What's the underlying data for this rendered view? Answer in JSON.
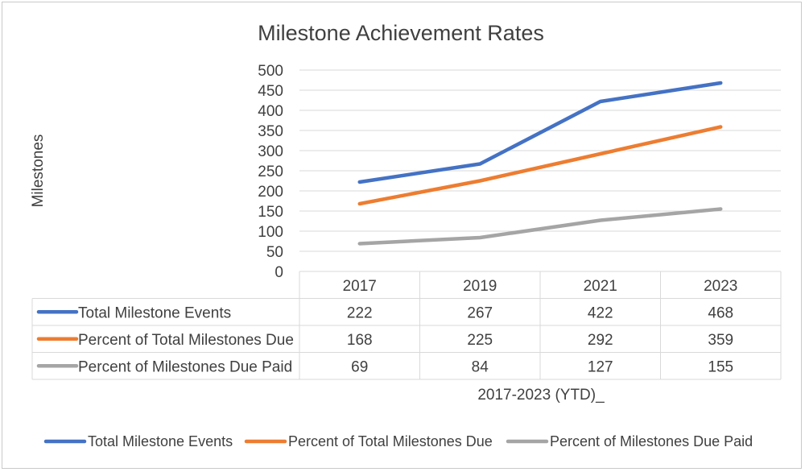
{
  "chart_data": {
    "type": "line",
    "title": "Milestone Achievement Rates",
    "ylabel": "Milestones",
    "xlabel": "2017-2023 (YTD)_",
    "ylim": [
      0,
      500
    ],
    "y_ticks": [
      0,
      50,
      100,
      150,
      200,
      250,
      300,
      350,
      400,
      450,
      500
    ],
    "categories": [
      "2017",
      "2019",
      "2021",
      "2023"
    ],
    "grid": true,
    "legend_position": "bottom",
    "data_table": true,
    "series": [
      {
        "name": "Total Milestone Events",
        "values": [
          222,
          267,
          422,
          468
        ],
        "color": "#4472C4"
      },
      {
        "name": "Percent of Total Milestones Due",
        "values": [
          168,
          225,
          292,
          359
        ],
        "color": "#ED7D31"
      },
      {
        "name": "Percent of Milestones Due Paid",
        "values": [
          69,
          84,
          127,
          155
        ],
        "color": "#A5A5A5"
      }
    ]
  }
}
